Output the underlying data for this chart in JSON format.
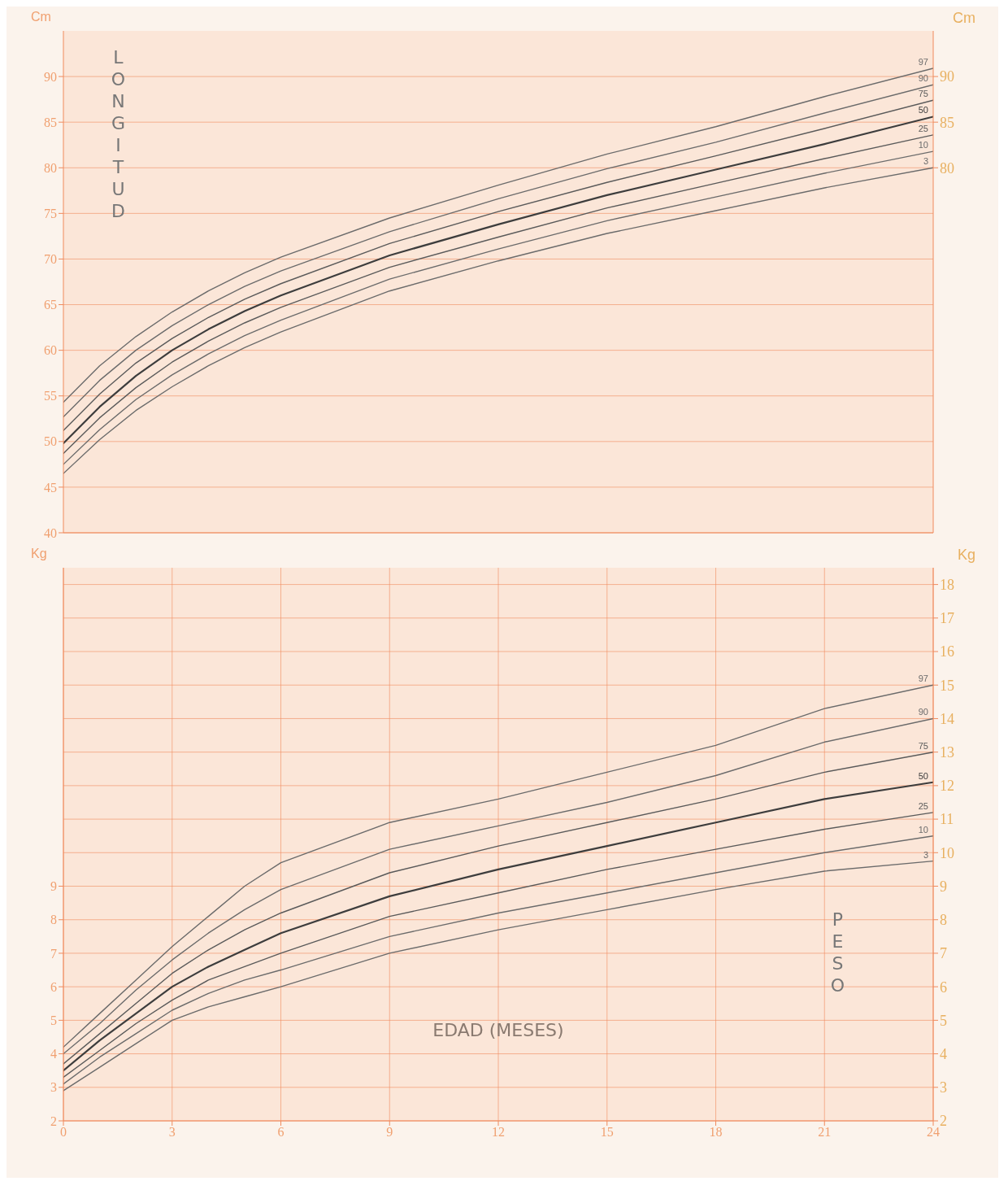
{
  "chart_data": [
    {
      "type": "line",
      "title": "LONGITUD",
      "ylabel": "Cm",
      "y2label": "Cm",
      "x": [
        0,
        1,
        2,
        3,
        4,
        5,
        6,
        9,
        12,
        15,
        18,
        21,
        24
      ],
      "xlim": [
        0,
        24
      ],
      "xticks": [
        0,
        3,
        6,
        9,
        12,
        15,
        18,
        21,
        24
      ],
      "ylim": [
        40,
        95
      ],
      "yticks": [
        40,
        45,
        50,
        55,
        60,
        65,
        70,
        75,
        80,
        85,
        90
      ],
      "y2lim": [
        40,
        95
      ],
      "y2ticks": [
        80,
        85,
        90
      ],
      "tick_labels": "y",
      "grid": true,
      "marker": "none",
      "series": [
        {
          "name": "3",
          "color": "#6b6b6b",
          "values": [
            46.5,
            50.2,
            53.4,
            56.0,
            58.3,
            60.3,
            62.0,
            66.5,
            69.8,
            72.8,
            75.3,
            77.8,
            80.0
          ]
        },
        {
          "name": "10",
          "color": "#6b6b6b",
          "values": [
            47.5,
            51.3,
            54.6,
            57.3,
            59.6,
            61.6,
            63.3,
            67.8,
            71.1,
            74.2,
            76.8,
            79.4,
            81.8
          ]
        },
        {
          "name": "25",
          "color": "#5a5a5a",
          "values": [
            48.7,
            52.6,
            55.9,
            58.7,
            61.0,
            63.0,
            64.7,
            69.1,
            72.4,
            75.6,
            78.3,
            81.0,
            83.6
          ]
        },
        {
          "name": "50",
          "color": "#3d3d3d",
          "values": [
            49.8,
            53.8,
            57.2,
            60.0,
            62.3,
            64.3,
            66.0,
            70.4,
            73.8,
            77.0,
            79.8,
            82.6,
            85.6
          ]
        },
        {
          "name": "75",
          "color": "#5a5a5a",
          "values": [
            51.2,
            55.2,
            58.6,
            61.3,
            63.6,
            65.6,
            67.3,
            71.7,
            75.2,
            78.4,
            81.3,
            84.3,
            87.4
          ]
        },
        {
          "name": "90",
          "color": "#6b6b6b",
          "values": [
            52.7,
            56.7,
            60.0,
            62.7,
            65.0,
            67.0,
            68.7,
            73.0,
            76.6,
            79.9,
            82.8,
            86.0,
            89.1
          ]
        },
        {
          "name": "97",
          "color": "#6b6b6b",
          "values": [
            54.3,
            58.3,
            61.5,
            64.2,
            66.5,
            68.5,
            70.2,
            74.5,
            78.1,
            81.5,
            84.5,
            87.8,
            90.9
          ]
        }
      ]
    },
    {
      "type": "line",
      "title": "PESO",
      "ylabel": "Kg",
      "y2label": "Kg",
      "xlabel": "EDAD (MESES)",
      "x": [
        0,
        1,
        2,
        3,
        4,
        5,
        6,
        9,
        12,
        15,
        18,
        21,
        24
      ],
      "xlim": [
        0,
        24
      ],
      "xticks": [
        0,
        3,
        6,
        9,
        12,
        15,
        18,
        21,
        24
      ],
      "ylim": [
        2,
        18.5
      ],
      "yticks": [
        2,
        3,
        4,
        5,
        6,
        7,
        8,
        9
      ],
      "y2lim": [
        2,
        18.5
      ],
      "y2ticks": [
        2,
        3,
        4,
        5,
        6,
        7,
        8,
        9,
        10,
        11,
        12,
        13,
        14,
        15,
        16,
        17,
        18
      ],
      "grid": true,
      "marker": "none",
      "series": [
        {
          "name": "3",
          "color": "#6b6b6b",
          "values": [
            2.9,
            3.6,
            4.3,
            5.0,
            5.4,
            5.7,
            6.0,
            7.0,
            7.7,
            8.3,
            8.9,
            9.45,
            9.75
          ]
        },
        {
          "name": "10",
          "color": "#6b6b6b",
          "values": [
            3.1,
            3.9,
            4.6,
            5.3,
            5.8,
            6.2,
            6.5,
            7.5,
            8.2,
            8.8,
            9.4,
            10.0,
            10.5
          ]
        },
        {
          "name": "25",
          "color": "#5a5a5a",
          "values": [
            3.3,
            4.1,
            4.9,
            5.6,
            6.2,
            6.6,
            7.0,
            8.1,
            8.8,
            9.5,
            10.1,
            10.7,
            11.2
          ]
        },
        {
          "name": "50",
          "color": "#3d3d3d",
          "values": [
            3.5,
            4.4,
            5.2,
            6.0,
            6.6,
            7.1,
            7.6,
            8.7,
            9.5,
            10.2,
            10.9,
            11.6,
            12.1
          ]
        },
        {
          "name": "75",
          "color": "#5a5a5a",
          "values": [
            3.7,
            4.6,
            5.5,
            6.4,
            7.1,
            7.7,
            8.2,
            9.4,
            10.2,
            10.9,
            11.6,
            12.4,
            13.0
          ]
        },
        {
          "name": "90",
          "color": "#6b6b6b",
          "values": [
            4.0,
            4.9,
            5.9,
            6.8,
            7.6,
            8.3,
            8.9,
            10.1,
            10.8,
            11.5,
            12.3,
            13.3,
            14.0
          ]
        },
        {
          "name": "97",
          "color": "#6b6b6b",
          "values": [
            4.2,
            5.2,
            6.2,
            7.2,
            8.1,
            9.0,
            9.7,
            10.9,
            11.6,
            12.4,
            13.2,
            14.3,
            15.0
          ]
        }
      ]
    }
  ]
}
